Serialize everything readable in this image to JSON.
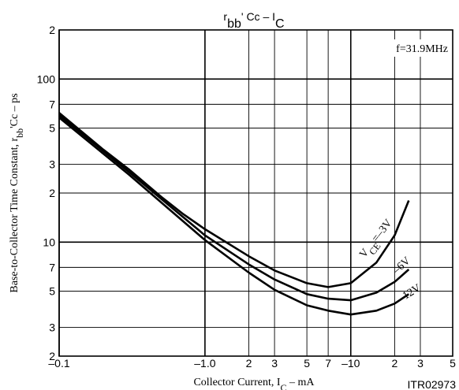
{
  "chart_data": {
    "type": "line",
    "title_parts": [
      "r",
      "bb",
      "' Cc  –  I",
      "C"
    ],
    "x_label_parts": [
      "Collector Current, I",
      "C",
      "  –  mA"
    ],
    "y_label_parts": [
      "Base-to-Collector Time Constant, r",
      "bb",
      "'Cc  –  ps"
    ],
    "annotation": "f=31.9MHz",
    "code": "ITR02973",
    "log_x": true,
    "log_y": true,
    "grid": true,
    "xlim": [
      0.1,
      50
    ],
    "xticks": [
      {
        "value": 0.1,
        "label": "–0.1"
      },
      2,
      3,
      5,
      7,
      {
        "value": 1,
        "label": "–1.0"
      },
      {
        "value": 20,
        "label": "2"
      },
      {
        "value": 30,
        "label": "3"
      },
      {
        "value": 50,
        "label": "5"
      },
      {
        "value": 70,
        "label": "7"
      },
      {
        "value": 10,
        "label": "–10"
      },
      {
        "value": 200,
        "label": "2"
      },
      {
        "value": 300,
        "label": "3"
      },
      {
        "value": 500,
        "label": "5"
      }
    ],
    "ylim": [
      2,
      200
    ],
    "yticks": [
      2,
      3,
      5,
      7,
      10,
      {
        "value": 20,
        "label": "2"
      },
      {
        "value": 30,
        "label": "3"
      },
      {
        "value": 50,
        "label": "5"
      },
      {
        "value": 70,
        "label": "7"
      },
      100,
      {
        "value": 200,
        "label": "2"
      }
    ],
    "series": [
      {
        "label": [
          "V",
          "CE",
          "=–3V"
        ],
        "color": "#000000",
        "x": [
          0.1,
          0.2,
          0.3,
          0.5,
          0.7,
          1,
          2,
          3,
          5,
          7,
          10,
          15,
          20,
          25
        ],
        "values": [
          62,
          37,
          28,
          19,
          15,
          12,
          8.2,
          6.7,
          5.6,
          5.3,
          5.6,
          7.5,
          11,
          18
        ]
      },
      {
        "label": [
          "–6V"
        ],
        "color": "#000000",
        "x": [
          0.1,
          0.3,
          1,
          2,
          3,
          5,
          7,
          10,
          15,
          20,
          25
        ],
        "values": [
          60,
          27,
          11,
          7.3,
          5.9,
          4.8,
          4.5,
          4.4,
          4.9,
          5.7,
          6.8
        ]
      },
      {
        "label": [
          "–12V"
        ],
        "color": "#000000",
        "x": [
          0.1,
          0.3,
          1,
          2,
          3,
          5,
          7,
          10,
          15,
          20,
          25
        ],
        "values": [
          58,
          26,
          10.3,
          6.5,
          5.1,
          4.1,
          3.8,
          3.6,
          3.8,
          4.2,
          4.8
        ]
      }
    ]
  }
}
